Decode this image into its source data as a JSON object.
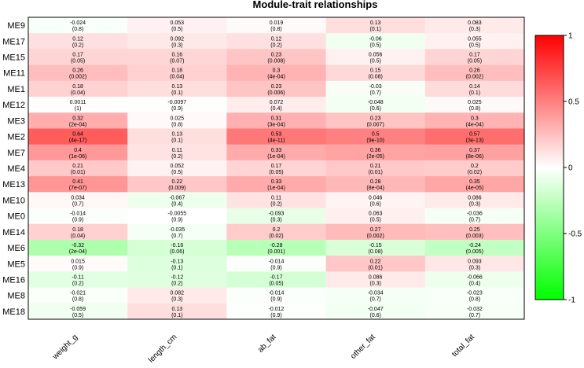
{
  "chart_data": {
    "type": "heatmap",
    "title": "Module-trait relationships",
    "columns": [
      "weight_g",
      "length_cm",
      "ab_fat",
      "other_fat",
      "total_fat"
    ],
    "rows": [
      "ME9",
      "ME17",
      "ME15",
      "ME11",
      "ME1",
      "ME12",
      "ME3",
      "ME2",
      "ME7",
      "ME4",
      "ME13",
      "ME10",
      "ME0",
      "ME14",
      "ME6",
      "ME5",
      "ME16",
      "ME8",
      "ME18"
    ],
    "values": [
      [
        -0.024,
        0.053,
        0.019,
        0.13,
        0.083
      ],
      [
        0.12,
        0.092,
        0.12,
        -0.06,
        0.055
      ],
      [
        0.17,
        0.16,
        0.23,
        0.056,
        0.17
      ],
      [
        0.26,
        0.18,
        0.3,
        0.15,
        0.26
      ],
      [
        0.18,
        0.13,
        0.23,
        -0.03,
        0.14
      ],
      [
        0.0011,
        -0.0097,
        0.072,
        -0.048,
        0.025
      ],
      [
        0.32,
        0.025,
        0.31,
        0.23,
        0.3
      ],
      [
        0.64,
        0.13,
        0.53,
        0.5,
        0.57
      ],
      [
        0.4,
        0.11,
        0.33,
        0.36,
        0.37
      ],
      [
        0.21,
        0.052,
        0.17,
        0.21,
        0.2
      ],
      [
        0.41,
        0.22,
        0.33,
        0.28,
        0.35
      ],
      [
        0.034,
        -0.067,
        0.11,
        0.046,
        0.086
      ],
      [
        -0.014,
        -0.0055,
        -0.093,
        0.063,
        -0.036
      ],
      [
        0.18,
        -0.035,
        0.2,
        0.27,
        0.25
      ],
      [
        -0.32,
        -0.16,
        -0.28,
        -0.15,
        -0.24
      ],
      [
        0.015,
        -0.13,
        -0.014,
        0.22,
        0.093
      ],
      [
        -0.11,
        -0.12,
        -0.17,
        0.086,
        -0.066
      ],
      [
        -0.021,
        0.082,
        -0.014,
        -0.034,
        -0.023
      ],
      [
        -0.059,
        0.13,
        -0.012,
        -0.047,
        -0.032
      ]
    ],
    "values_text": [
      [
        "-0.024",
        "0.053",
        "0.019",
        "0.13",
        "0.083"
      ],
      [
        "0.12",
        "0.092",
        "0.12",
        "-0.06",
        "0.055"
      ],
      [
        "0.17",
        "0.16",
        "0.23",
        "0.056",
        "0.17"
      ],
      [
        "0.26",
        "0.18",
        "0.3",
        "0.15",
        "0.26"
      ],
      [
        "0.18",
        "0.13",
        "0.23",
        "-0.03",
        "0.14"
      ],
      [
        "0.0011",
        "-0.0097",
        "0.072",
        "-0.048",
        "0.025"
      ],
      [
        "0.32",
        "0.025",
        "0.31",
        "0.23",
        "0.3"
      ],
      [
        "0.64",
        "0.13",
        "0.53",
        "0.5",
        "0.57"
      ],
      [
        "0.4",
        "0.11",
        "0.33",
        "0.36",
        "0.37"
      ],
      [
        "0.21",
        "0.052",
        "0.17",
        "0.21",
        "0.2"
      ],
      [
        "0.41",
        "0.22",
        "0.33",
        "0.28",
        "0.35"
      ],
      [
        "0.034",
        "-0.067",
        "0.11",
        "0.046",
        "0.086"
      ],
      [
        "-0.014",
        "-0.0055",
        "-0.093",
        "0.063",
        "-0.036"
      ],
      [
        "0.18",
        "-0.035",
        "0.2",
        "0.27",
        "0.25"
      ],
      [
        "-0.32",
        "-0.16",
        "-0.28",
        "-0.15",
        "-0.24"
      ],
      [
        "0.015",
        "-0.13",
        "-0.014",
        "0.22",
        "0.093"
      ],
      [
        "-0.11",
        "-0.12",
        "-0.17",
        "0.086",
        "-0.066"
      ],
      [
        "-0.021",
        "0.082",
        "-0.014",
        "-0.034",
        "-0.023"
      ],
      [
        "-0.059",
        "0.13",
        "-0.012",
        "-0.047",
        "-0.032"
      ]
    ],
    "pvalues_text": [
      [
        "(0.8)",
        "(0.5)",
        "(0.8)",
        "(0.1)",
        "(0.3)"
      ],
      [
        "(0.2)",
        "(0.3)",
        "(0.2)",
        "(0.5)",
        "(0.5)"
      ],
      [
        "(0.05)",
        "(0.07)",
        "(0.008)",
        "(0.5)",
        "(0.05)"
      ],
      [
        "(0.002)",
        "(0.04)",
        "(4e-04)",
        "(0.08)",
        "(0.002)"
      ],
      [
        "(0.04)",
        "(0.1)",
        "(0.006)",
        "(0.7)",
        "(0.1)"
      ],
      [
        "(1)",
        "(0.9)",
        "(0.4)",
        "(0.6)",
        "(0.8)"
      ],
      [
        "(2e-04)",
        "(0.8)",
        "(3e-04)",
        "(0.007)",
        "(4e-04)"
      ],
      [
        "(4e-17)",
        "(0.1)",
        "(4e-11)",
        "(9e-10)",
        "(3e-13)"
      ],
      [
        "(1e-06)",
        "(0.2)",
        "(1e-04)",
        "(2e-05)",
        "(8e-06)"
      ],
      [
        "(0.01)",
        "(0.5)",
        "(0.05)",
        "(0.01)",
        "(0.02)"
      ],
      [
        "(7e-07)",
        "(0.009)",
        "(1e-04)",
        "(8e-04)",
        "(4e-05)"
      ],
      [
        "(0.7)",
        "(0.4)",
        "(0.2)",
        "(0.6)",
        "(0.3)"
      ],
      [
        "(0.9)",
        "(0.9)",
        "(0.3)",
        "(0.5)",
        "(0.7)"
      ],
      [
        "(0.04)",
        "(0.7)",
        "(0.02)",
        "(0.002)",
        "(0.003)"
      ],
      [
        "(2e-04)",
        "(0.06)",
        "(0.001)",
        "(0.08)",
        "(0.005)"
      ],
      [
        "(0.9)",
        "(0.1)",
        "(0.9)",
        "(0.01)",
        "(0.3)"
      ],
      [
        "(0.2)",
        "(0.2)",
        "(0.05)",
        "(0.3)",
        "(0.4)"
      ],
      [
        "(0.8)",
        "(0.3)",
        "(0.9)",
        "(0.7)",
        "(0.8)"
      ],
      [
        "(0.5)",
        "(0.1)",
        "(0.9)",
        "(0.6)",
        "(0.7)"
      ]
    ],
    "colorscale": {
      "range": [
        -1,
        1
      ],
      "ticks": [
        "1",
        "0.5",
        "0",
        "-0.5",
        "-1"
      ],
      "tick_values": [
        1,
        0.5,
        0,
        -0.5,
        -1
      ],
      "colors": {
        "negative": "#00ff00",
        "zero": "#ffffff",
        "positive": "#ff0000"
      }
    }
  }
}
